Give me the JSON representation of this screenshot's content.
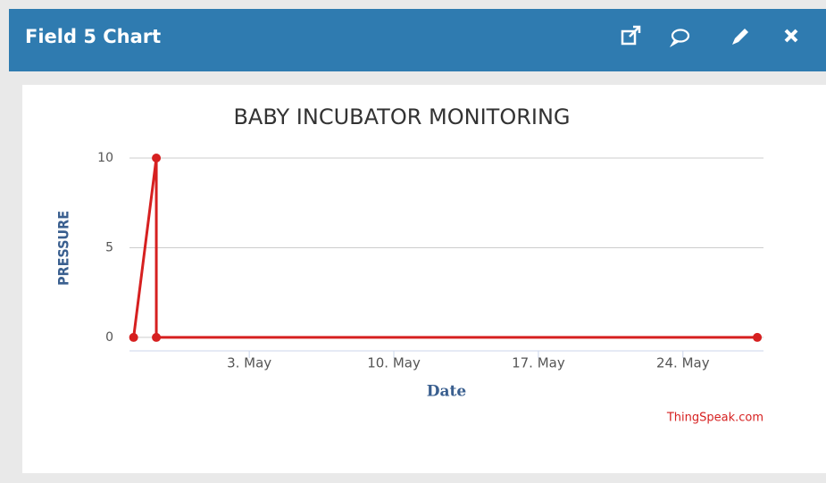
{
  "widget": {
    "title": "Field 5 Chart"
  },
  "chart_data": {
    "type": "line",
    "title": "BABY INCUBATOR MONITORING",
    "x_label": "Date",
    "y_label": "PRESSURE",
    "credit": "ThingSpeak.com",
    "x": [
      -2.6,
      -1.5,
      -1.5,
      27.6
    ],
    "series": [
      {
        "name": "Field 5",
        "color": "#d62020",
        "values": [
          0,
          10,
          0,
          0
        ]
      }
    ],
    "xlim": [
      -2.8,
      27.9
    ],
    "xticks": [
      {
        "value": 3,
        "label": "3. May"
      },
      {
        "value": 10,
        "label": "10. May"
      },
      {
        "value": 17,
        "label": "17. May"
      },
      {
        "value": 24,
        "label": "24. May"
      }
    ],
    "ylim": [
      -0.75,
      10
    ],
    "yticks": [
      0,
      5,
      10
    ],
    "grid": true
  }
}
